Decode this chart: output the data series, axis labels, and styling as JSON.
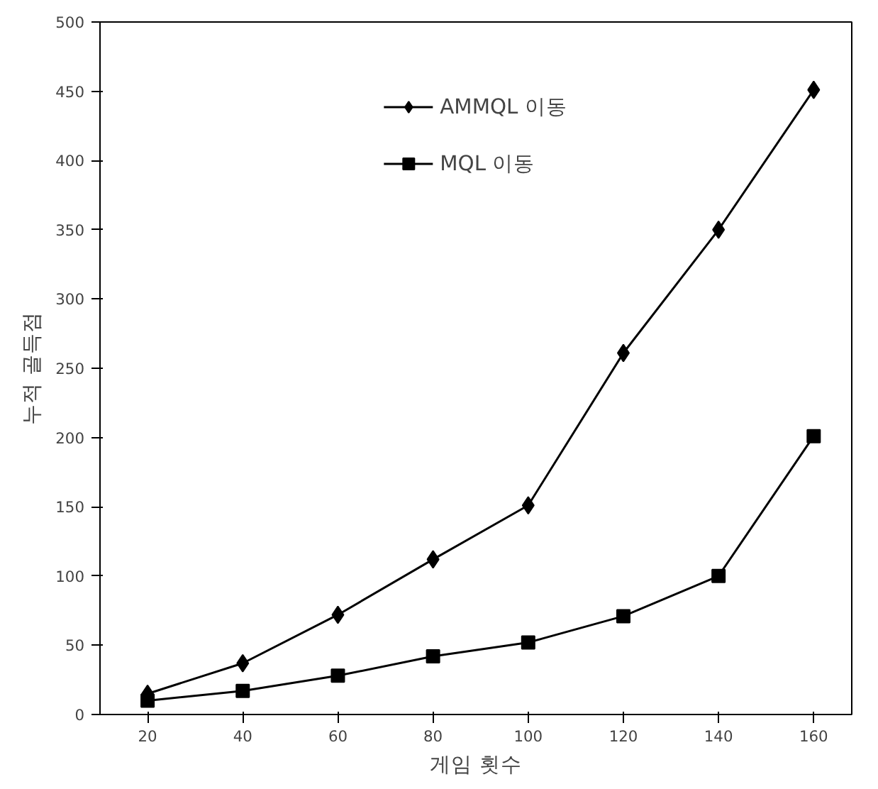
{
  "chart_data": {
    "type": "line",
    "xlabel": "게임 횟수",
    "ylabel": "누적 골득점",
    "x": [
      20,
      40,
      60,
      80,
      100,
      120,
      140,
      160
    ],
    "series": [
      {
        "name": "AMMQL 이동",
        "color": "#000000",
        "marker": "diamond",
        "values": [
          15,
          37,
          72,
          112,
          151,
          261,
          350,
          451
        ]
      },
      {
        "name": "MQL 이동",
        "color": "#000000",
        "marker": "square",
        "values": [
          10,
          17,
          28,
          42,
          52,
          71,
          100,
          201
        ]
      }
    ],
    "xlim": [
      10,
      168
    ],
    "xticks": [
      20,
      40,
      60,
      80,
      100,
      120,
      140,
      160
    ],
    "ylim": [
      0,
      500
    ],
    "yticks": [
      0,
      50,
      100,
      150,
      200,
      250,
      300,
      350,
      400,
      450,
      500
    ],
    "grid": false,
    "legend": "top",
    "line_style": "solid"
  }
}
